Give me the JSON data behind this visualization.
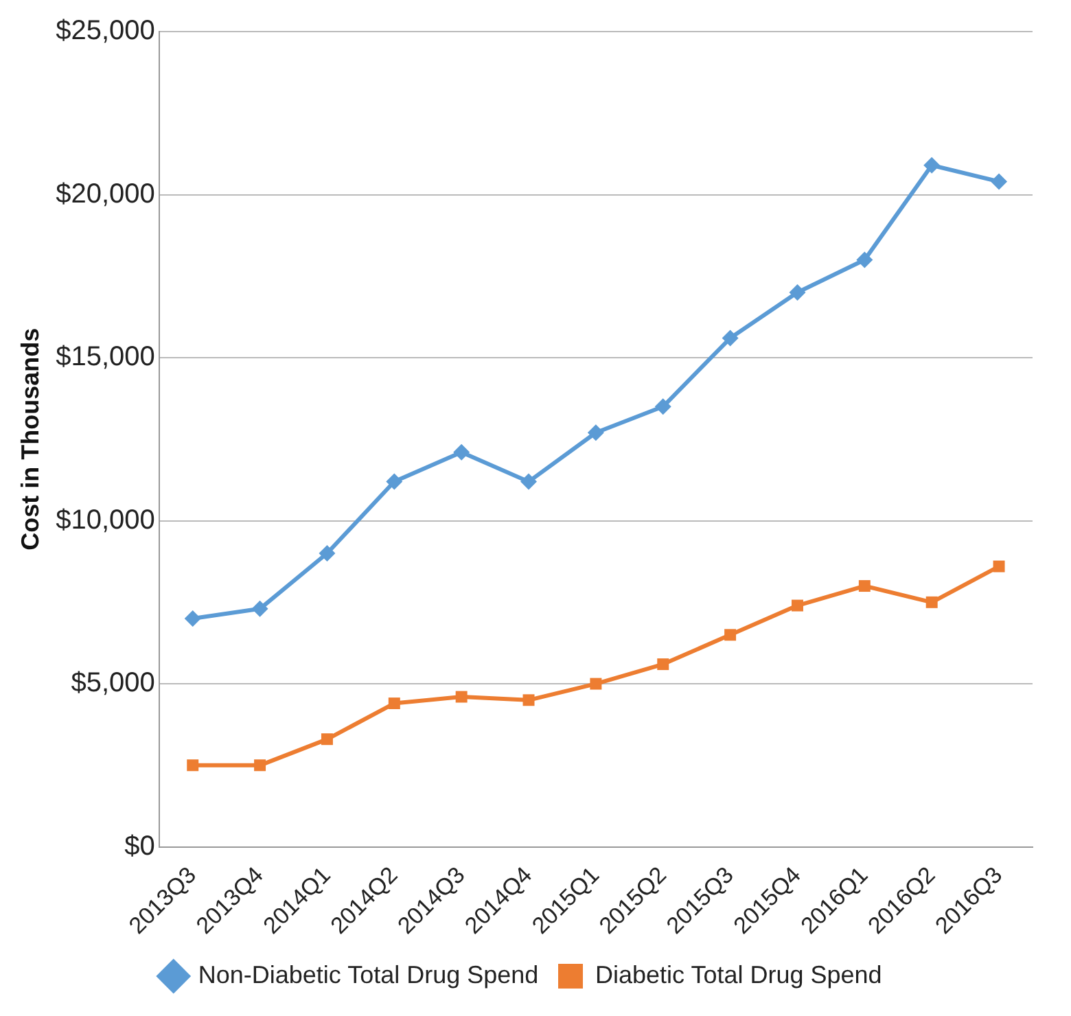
{
  "chart_data": {
    "type": "line",
    "ylabel": "Cost in Thousands",
    "categories": [
      "2013Q3",
      "2013Q4",
      "2014Q1",
      "2014Q2",
      "2014Q3",
      "2014Q4",
      "2015Q1",
      "2015Q2",
      "2015Q3",
      "2015Q4",
      "2016Q1",
      "2016Q2",
      "2016Q3"
    ],
    "series": [
      {
        "name": "Non-Diabetic Total Drug Spend",
        "color": "#5b9bd5",
        "marker": "diamond",
        "values": [
          7000,
          7300,
          9000,
          11200,
          12100,
          11200,
          12700,
          13500,
          15600,
          17000,
          18000,
          20900,
          20400
        ]
      },
      {
        "name": "Diabetic Total Drug Spend",
        "color": "#ed7d31",
        "marker": "square",
        "values": [
          2500,
          2500,
          3300,
          4400,
          4600,
          4500,
          5000,
          5600,
          6500,
          7400,
          8000,
          7500,
          8600
        ]
      }
    ],
    "ylim": [
      0,
      25000
    ],
    "yticks": [
      {
        "value": 0,
        "label": "$0"
      },
      {
        "value": 5000,
        "label": "$5,000"
      },
      {
        "value": 10000,
        "label": "$10,000"
      },
      {
        "value": 15000,
        "label": "$15,000"
      },
      {
        "value": 20000,
        "label": "$20,000"
      },
      {
        "value": 25000,
        "label": "$25,000"
      }
    ],
    "grid": "y",
    "legend": "bottom"
  }
}
